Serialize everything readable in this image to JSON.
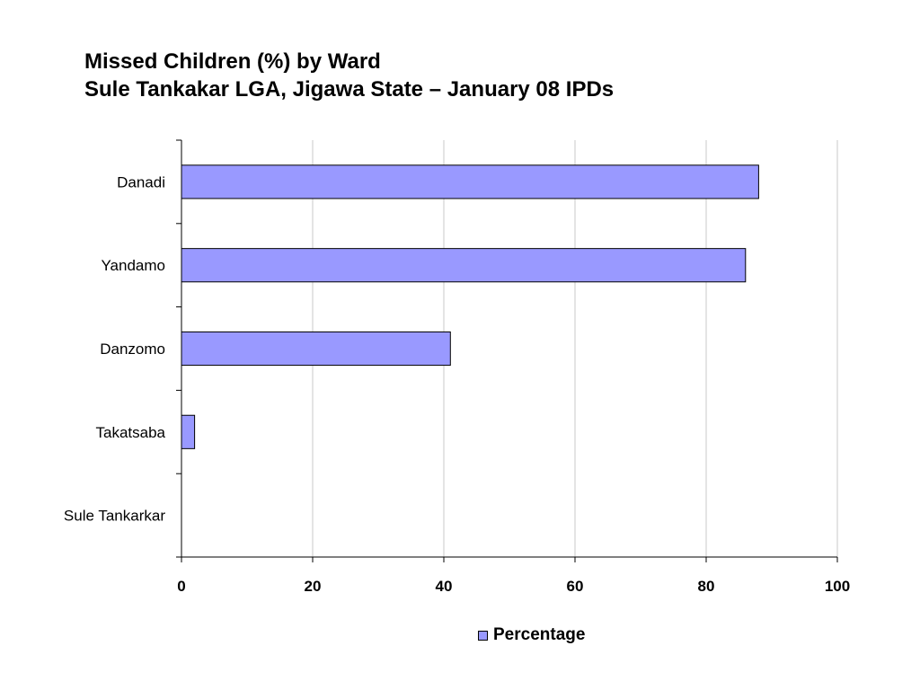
{
  "chart_data": {
    "type": "bar",
    "orientation": "horizontal",
    "title": "Missed Children (%) by Ward",
    "subtitle": "Sule Tankakar LGA, Jigawa State – January 08 IPDs",
    "categories": [
      "Danadi",
      "Yandamo",
      "Danzomo",
      "Takatsaba",
      "Sule Tankarkar"
    ],
    "series": [
      {
        "name": "Percentage",
        "values": [
          88,
          86,
          41,
          2,
          0
        ],
        "color": "#9999ff"
      }
    ],
    "xlim": [
      0,
      100
    ],
    "x_ticks": [
      0,
      20,
      40,
      60,
      80,
      100
    ],
    "grid": true,
    "legend_position": "bottom"
  }
}
